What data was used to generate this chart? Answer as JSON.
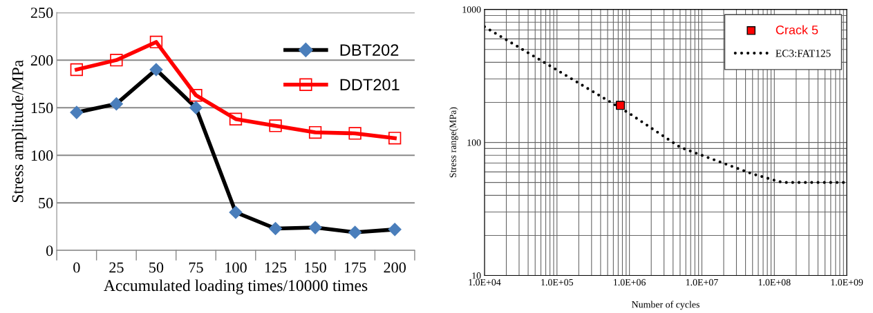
{
  "chart_data": [
    {
      "type": "line",
      "xlabel": "Accumulated loading times/10000 times",
      "ylabel": "Stress amplitude/MPa",
      "categories": [
        "0",
        "25",
        "50",
        "75",
        "100",
        "125",
        "150",
        "175",
        "200"
      ],
      "ylim": [
        0,
        250
      ],
      "yticks": [
        0,
        50,
        100,
        150,
        200,
        250
      ],
      "grid": "y",
      "legend": "top right",
      "series": [
        {
          "name": "DBT202",
          "color": "#000000",
          "marker": "diamond",
          "colors": [
            "#4a7ebb",
            "#4a7ebb",
            "#4a7ebb",
            "#4a7ebb",
            "#4a7ebb",
            "#4a7ebb",
            "#4a7ebb",
            "#4a7ebb",
            "#4a7ebb"
          ],
          "values": [
            145,
            154,
            190,
            150,
            40,
            23,
            24,
            19,
            22
          ]
        },
        {
          "name": "DDT201",
          "color": "#ff0000",
          "marker": "square",
          "values": [
            190,
            200,
            219,
            163,
            138,
            131,
            124,
            123,
            118
          ]
        }
      ]
    },
    {
      "type": "line",
      "xlabel": "Number of cycles",
      "ylabel": "Stress range(MPa)",
      "log": "xy",
      "xlim": [
        10000,
        1000000000
      ],
      "ylim": [
        10,
        1000
      ],
      "xticks": [
        {
          "value": 10000,
          "label": "1.0E+04"
        },
        {
          "value": 100000,
          "label": "1.0E+05"
        },
        {
          "value": 1000000,
          "label": "1.0E+06"
        },
        {
          "value": 10000000,
          "label": "1.0E+07"
        },
        {
          "value": 100000000,
          "label": "1.0E+08"
        },
        {
          "value": 1000000000,
          "label": "1.0E+09"
        }
      ],
      "yticks": [
        10,
        100,
        1000
      ],
      "grid": true,
      "legend": "top right",
      "series": [
        {
          "name": "Crack 5",
          "type": "scatter",
          "color": "#ff0000",
          "marker": "square",
          "x": [
            750000
          ],
          "values": [
            190
          ]
        },
        {
          "name": "EC3:FAT125",
          "color": "#000000",
          "line_style": "dotted",
          "marker": "none",
          "x": [
            10000,
            100000,
            1000000,
            5000000,
            10000000,
            50000000,
            100000000,
            130000000,
            1000000000
          ],
          "values": [
            740,
            350,
            165,
            92,
            80,
            58,
            52,
            50,
            50
          ]
        }
      ]
    }
  ]
}
